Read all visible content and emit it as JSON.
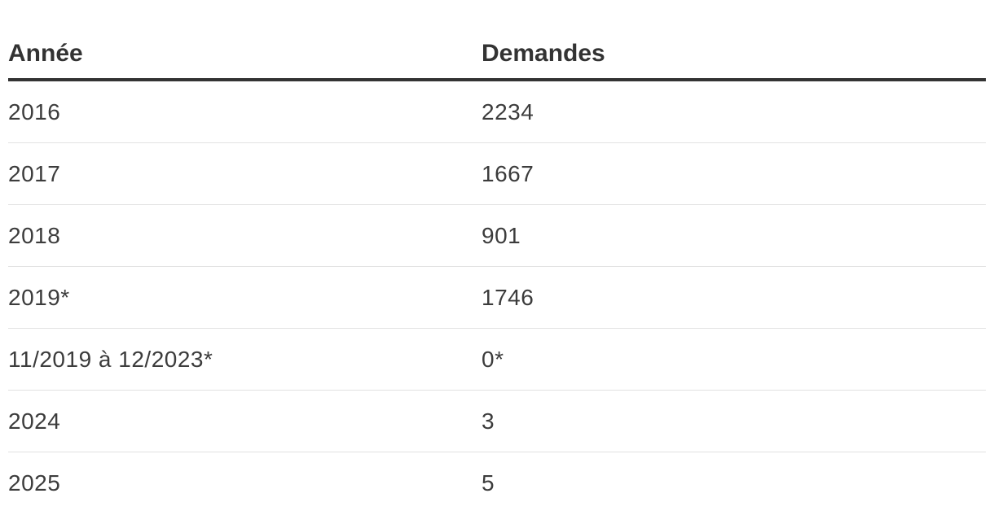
{
  "table": {
    "headers": {
      "year": "Année",
      "requests": "Demandes"
    },
    "rows": [
      {
        "year": "2016",
        "requests": "2234"
      },
      {
        "year": "2017",
        "requests": "1667"
      },
      {
        "year": "2018",
        "requests": "901"
      },
      {
        "year": "2019*",
        "requests": "1746"
      },
      {
        "year": "11/2019 à 12/2023*",
        "requests": "0*"
      },
      {
        "year": "2024",
        "requests": "3"
      },
      {
        "year": "2025",
        "requests": "5"
      }
    ]
  },
  "colors": {
    "text": "#333333",
    "header_rule": "#333333",
    "row_divider": "#e2e2e2"
  }
}
